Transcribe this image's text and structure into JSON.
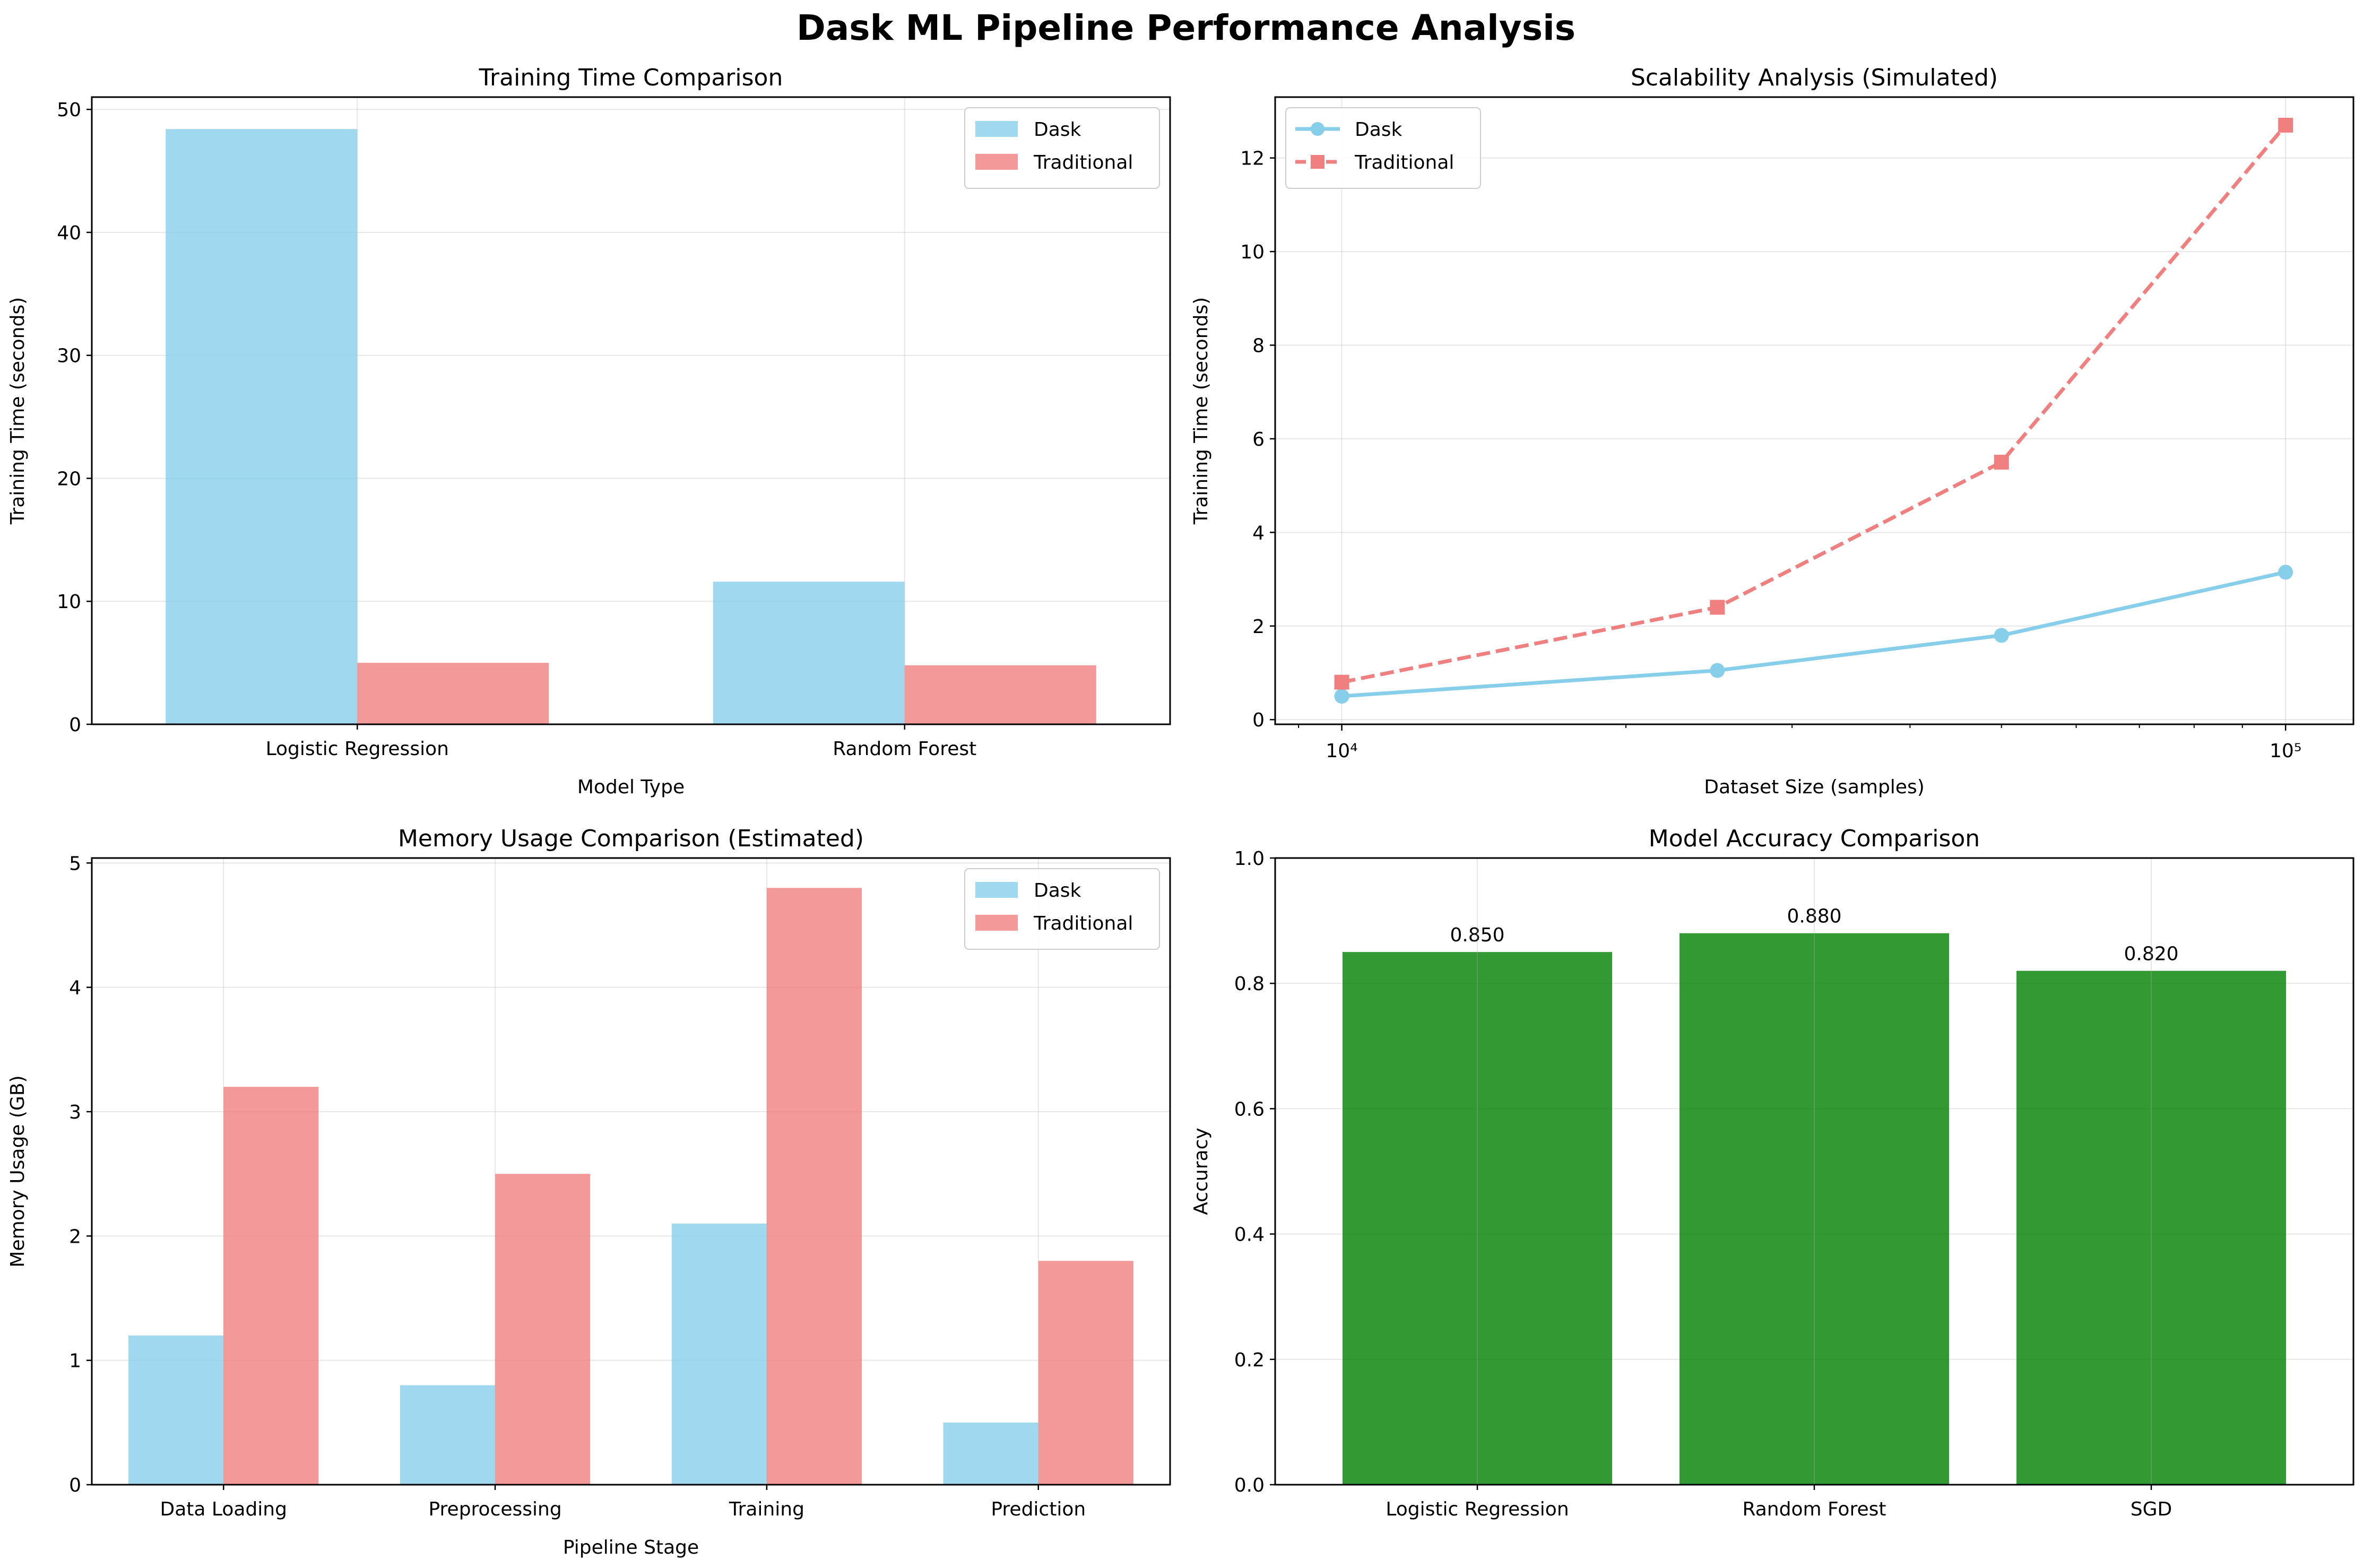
{
  "title": "Dask ML Pipeline Performance Analysis",
  "colors": {
    "dask": "#87ceeb",
    "traditional": "#f08080",
    "accuracy": "#008000"
  },
  "chart_data": [
    {
      "type": "bar",
      "title": "Training Time Comparison",
      "xlabel": "Model Type",
      "ylabel": "Training Time (seconds)",
      "categories": [
        "Logistic Regression",
        "Random Forest"
      ],
      "series": [
        {
          "name": "Dask",
          "values": [
            48.4,
            11.6
          ]
        },
        {
          "name": "Traditional",
          "values": [
            5.0,
            4.8
          ]
        }
      ],
      "ylim": [
        0,
        51
      ],
      "yticks": [
        0,
        10,
        20,
        30,
        40,
        50
      ],
      "grid": true,
      "legend": "upper right"
    },
    {
      "type": "line",
      "title": "Scalability Analysis (Simulated)",
      "xlabel": "Dataset Size (samples)",
      "ylabel": "Training Time (seconds)",
      "xscale": "log",
      "x": [
        10000,
        25000,
        50000,
        100000
      ],
      "series": [
        {
          "name": "Dask",
          "values": [
            0.5,
            1.05,
            1.8,
            3.15
          ],
          "marker": "circle",
          "linestyle": "solid"
        },
        {
          "name": "Traditional",
          "values": [
            0.8,
            2.4,
            5.5,
            12.7
          ],
          "marker": "square",
          "linestyle": "dashed"
        }
      ],
      "xlim": [
        8500,
        118000
      ],
      "ylim": [
        -0.1,
        13.3
      ],
      "yticks": [
        0,
        2,
        4,
        6,
        8,
        10,
        12
      ],
      "xtick_labels": [
        "10⁴",
        "10⁵"
      ],
      "grid": true,
      "legend": "upper left"
    },
    {
      "type": "bar",
      "title": "Memory Usage Comparison (Estimated)",
      "xlabel": "Pipeline Stage",
      "ylabel": "Memory Usage (GB)",
      "categories": [
        "Data Loading",
        "Preprocessing",
        "Training",
        "Prediction"
      ],
      "series": [
        {
          "name": "Dask",
          "values": [
            1.2,
            0.8,
            2.1,
            0.5
          ]
        },
        {
          "name": "Traditional",
          "values": [
            3.2,
            2.5,
            4.8,
            1.8
          ]
        }
      ],
      "ylim": [
        0,
        5.04
      ],
      "yticks": [
        0,
        1,
        2,
        3,
        4,
        5
      ],
      "grid": true,
      "legend": "upper right"
    },
    {
      "type": "bar",
      "title": "Model Accuracy Comparison",
      "xlabel": "",
      "ylabel": "Accuracy",
      "categories": [
        "Logistic Regression",
        "Random Forest",
        "SGD"
      ],
      "values": [
        0.85,
        0.88,
        0.82
      ],
      "value_labels": [
        "0.850",
        "0.880",
        "0.820"
      ],
      "ylim": [
        0,
        1.0
      ],
      "yticks": [
        0.0,
        0.2,
        0.4,
        0.6,
        0.8,
        1.0
      ],
      "ytick_labels": [
        "0.0",
        "0.2",
        "0.4",
        "0.6",
        "0.8",
        "1.0"
      ],
      "grid": true
    }
  ]
}
